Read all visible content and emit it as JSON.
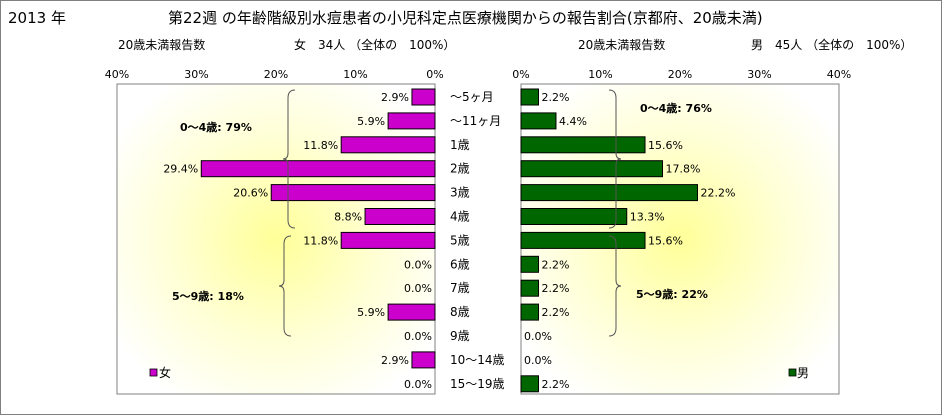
{
  "header": {
    "year": "2013 年",
    "title": "第22週 の年齢階級別水痘患者の小児科定点医療機関からの報告割合(京都府、20歳未満)",
    "left_subtitle": "20歳未満報告数",
    "left_total": "女　34人 （全体の　100%）",
    "right_subtitle": "20歳未満報告数",
    "right_total": "男　45人 （全体の　100%）"
  },
  "chart_data": [
    {
      "type": "bar",
      "orientation": "horizontal",
      "direction": "right-to-left",
      "series": [
        {
          "name": "女",
          "values": [
            2.9,
            5.9,
            11.8,
            29.4,
            20.6,
            8.8,
            11.8,
            0.0,
            0.0,
            5.9,
            0.0,
            2.9,
            0.0
          ]
        }
      ],
      "value_labels": [
        "2.9%",
        "5.9%",
        "11.8%",
        "29.4%",
        "20.6%",
        "8.8%",
        "11.8%",
        "0.0%",
        "0.0%",
        "5.9%",
        "0.0%",
        "2.9%",
        "0.0%"
      ],
      "xlim": [
        0,
        40
      ],
      "ticks": [
        "40%",
        "30%",
        "20%",
        "10%",
        "0%"
      ],
      "bar_color": "#cc00cc",
      "legend": "bottom-left",
      "annotations": [
        "0～4歳: 79%",
        "5～9歳: 18%"
      ]
    },
    {
      "type": "bar",
      "orientation": "horizontal",
      "direction": "left-to-right",
      "series": [
        {
          "name": "男",
          "values": [
            2.2,
            4.4,
            15.6,
            17.8,
            22.2,
            13.3,
            15.6,
            2.2,
            2.2,
            2.2,
            0.0,
            0.0,
            2.2
          ]
        }
      ],
      "value_labels": [
        "2.2%",
        "4.4%",
        "15.6%",
        "17.8%",
        "22.2%",
        "13.3%",
        "15.6%",
        "2.2%",
        "2.2%",
        "2.2%",
        "0.0%",
        "0.0%",
        "2.2%"
      ],
      "xlim": [
        0,
        40
      ],
      "ticks": [
        "0%",
        "10%",
        "20%",
        "30%",
        "40%"
      ],
      "bar_color": "#006600",
      "legend": "bottom-right",
      "annotations": [
        "0～4歳: 76%",
        "5～9歳: 22%"
      ]
    }
  ],
  "categories": [
    "～5ヶ月",
    "～11ヶ月",
    "1歳",
    "2歳",
    "3歳",
    "4歳",
    "5歳",
    "6歳",
    "7歳",
    "8歳",
    "9歳",
    "10～14歳",
    "15～19歳"
  ],
  "colors": {
    "female": "#cc00cc",
    "male": "#006600",
    "plot_glow": "#ffff99"
  }
}
